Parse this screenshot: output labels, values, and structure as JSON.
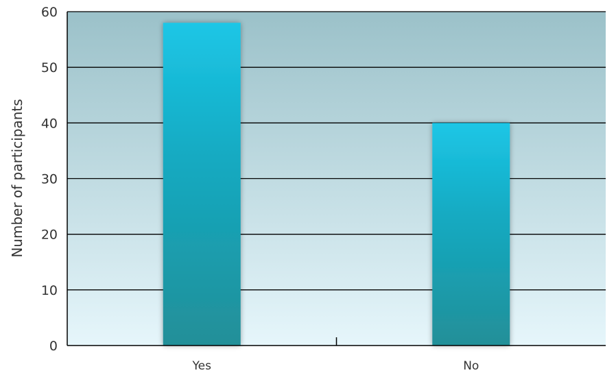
{
  "chart_data": {
    "type": "bar",
    "categories": [
      "Yes",
      "No"
    ],
    "values": [
      58,
      40
    ],
    "xlabel": "",
    "ylabel": "Number of participants",
    "ylim": [
      0,
      60
    ],
    "yticks": [
      0,
      10,
      20,
      30,
      40,
      50,
      60
    ],
    "ytick_labels": [
      "0",
      "10",
      "20",
      "30",
      "40",
      "50",
      "60"
    ],
    "grid": true,
    "legend": "none",
    "colors": {
      "bar_top": "#1ec6e6",
      "bar_mid": "#12abc3",
      "bar_bottom": "#238f98",
      "plot_bg_top": "#9bc1c9",
      "plot_bg_bottom": "#e6f6fb",
      "grid": "#000000",
      "axis": "#000000"
    }
  }
}
